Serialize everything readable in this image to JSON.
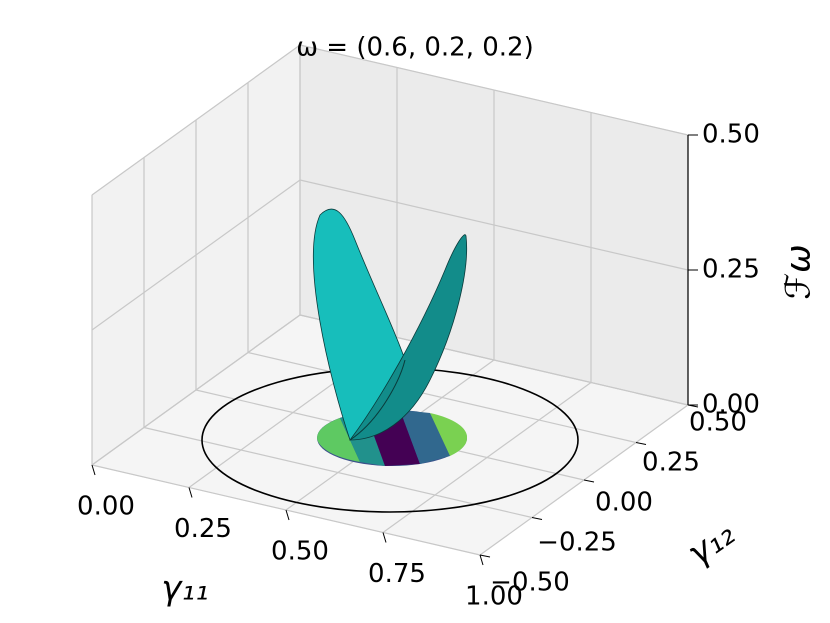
{
  "chart_data": {
    "type": "surface3d",
    "title": "ω = (0.6, 0.2, 0.2)",
    "x_label": "γ₁₁",
    "y_label": "γ₁₂",
    "z_label": "ℱω",
    "xlim": [
      0,
      1
    ],
    "ylim": [
      -0.5,
      0.5
    ],
    "zlim": [
      0,
      0.5
    ],
    "xticks": [
      {
        "value": 0,
        "label": "0.00"
      },
      {
        "value": 0.25,
        "label": "0.25"
      },
      {
        "value": 0.5,
        "label": "0.50"
      },
      {
        "value": 0.75,
        "label": "0.75"
      },
      {
        "value": 1,
        "label": "1.00"
      }
    ],
    "yticks": [
      {
        "value": -0.5,
        "label": "−0.50"
      },
      {
        "value": -0.25,
        "label": "−0.25"
      },
      {
        "value": 0,
        "label": "0.00"
      },
      {
        "value": 0.25,
        "label": "0.25"
      },
      {
        "value": 0.5,
        "label": "0.50"
      }
    ],
    "zticks": [
      {
        "value": 0,
        "label": "0.00"
      },
      {
        "value": 0.25,
        "label": "0.25"
      },
      {
        "value": 0.5,
        "label": "0.50"
      }
    ],
    "grid": true
  }
}
